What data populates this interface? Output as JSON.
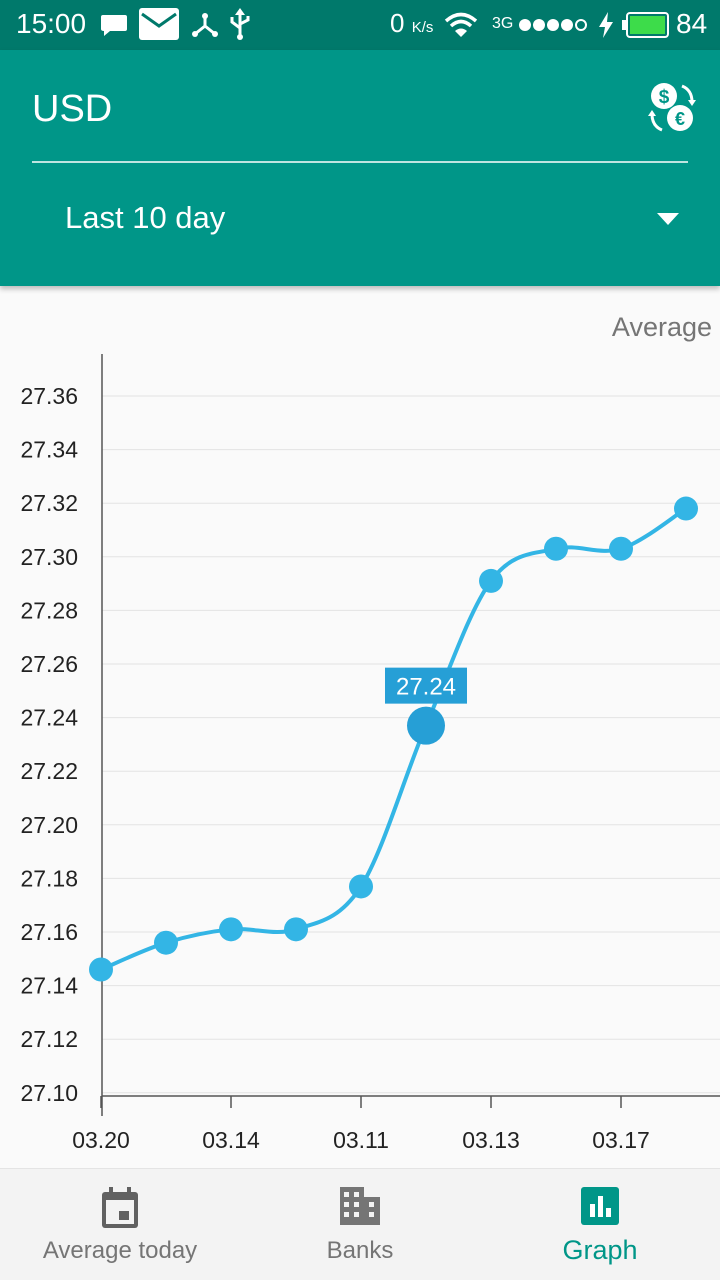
{
  "status_bar": {
    "time": "15:00",
    "speed_value": "0",
    "speed_unit": "K/s",
    "network": "3G",
    "battery": "84",
    "icons": [
      "chat-icon",
      "mail-icon",
      "share-icon",
      "usb-icon",
      "wifi-icon",
      "signal-icon",
      "charging-icon",
      "battery-icon"
    ]
  },
  "header": {
    "currency": "USD",
    "swap_icon": "currency-exchange-icon",
    "period": "Last 10 day",
    "accent": "#009688",
    "status_color": "#00796b"
  },
  "chart_data": {
    "type": "line",
    "title": "Average",
    "series_color": "#33b5e5",
    "x_tick_labels": [
      "03.20",
      "03.14",
      "03.11",
      "03.13",
      "03.17"
    ],
    "y_tick_labels": [
      "27.36",
      "27.34",
      "27.32",
      "27.30",
      "27.28",
      "27.26",
      "27.24",
      "27.22",
      "27.20",
      "27.18",
      "27.16",
      "27.14",
      "27.12",
      "27.10"
    ],
    "ylim": [
      27.09,
      27.37
    ],
    "values": [
      27.146,
      27.156,
      27.161,
      27.161,
      27.177,
      27.237,
      27.291,
      27.303,
      27.303,
      27.318
    ],
    "highlighted_index": 5,
    "highlighted_label": "27.24",
    "grid": true
  },
  "bottom_nav": {
    "items": [
      {
        "label": "Average today",
        "icon": "calendar-icon"
      },
      {
        "label": "Banks",
        "icon": "bank-icon"
      },
      {
        "label": "Graph",
        "icon": "bar-chart-icon"
      }
    ],
    "active": "Graph"
  }
}
